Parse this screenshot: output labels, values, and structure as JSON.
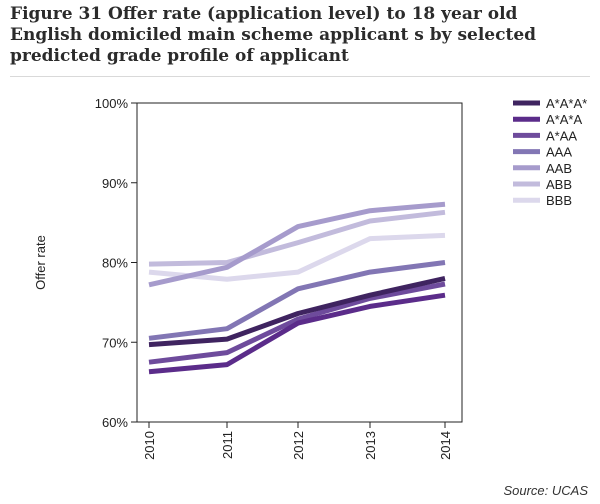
{
  "title": "Figure 31 Offer rate (application level) to 18 year old English domiciled main scheme applicant s by selected predicted grade profile of applicant",
  "source": "Source: UCAS",
  "chart_data": {
    "type": "line",
    "title": "Figure 31 Offer rate (application level) to 18 year old English domiciled main scheme applicant s by selected predicted grade profile of applicant",
    "xlabel": "",
    "ylabel": "Offer rate",
    "x": [
      "2010",
      "2011",
      "2012",
      "2013",
      "2014"
    ],
    "ylim": [
      60,
      100
    ],
    "yticks": [
      60,
      70,
      80,
      90,
      100
    ],
    "ytick_labels": [
      "60%",
      "70%",
      "80%",
      "90%",
      "100%"
    ],
    "grid": false,
    "legend": "right",
    "series": [
      {
        "name": "A*A*A*",
        "color": "#3f2460",
        "values": [
          69.7,
          70.4,
          73.6,
          75.9,
          78.0
        ]
      },
      {
        "name": "A*A*A",
        "color": "#5b2c8a",
        "values": [
          66.3,
          67.2,
          72.4,
          74.5,
          75.9
        ]
      },
      {
        "name": "A*AA",
        "color": "#6e4b9c",
        "values": [
          67.5,
          68.7,
          72.9,
          75.5,
          77.3
        ]
      },
      {
        "name": "AAA",
        "color": "#8276b4",
        "values": [
          70.5,
          71.7,
          76.7,
          78.8,
          80.0
        ]
      },
      {
        "name": "AAB",
        "color": "#a69bcc",
        "values": [
          77.2,
          79.4,
          84.5,
          86.5,
          87.3
        ]
      },
      {
        "name": "ABB",
        "color": "#c2bbdc",
        "values": [
          79.8,
          80.0,
          82.5,
          85.2,
          86.3
        ]
      },
      {
        "name": "BBB",
        "color": "#dcd8ec",
        "values": [
          78.8,
          77.9,
          78.8,
          83.0,
          83.4
        ]
      }
    ]
  }
}
